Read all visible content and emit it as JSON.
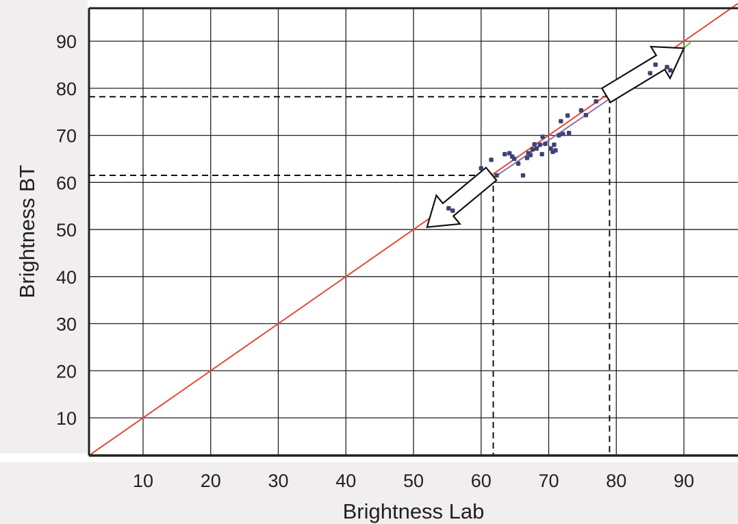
{
  "chart_data": {
    "type": "scatter",
    "title": "",
    "xlabel": "Brightness Lab",
    "ylabel": "Brightness BT",
    "xlim": [
      2,
      98
    ],
    "ylim": [
      2,
      97
    ],
    "x_ticks": [
      10,
      20,
      30,
      40,
      50,
      60,
      70,
      80,
      90
    ],
    "y_ticks": [
      10,
      20,
      30,
      40,
      50,
      60,
      70,
      80,
      90
    ],
    "x_tick_labels": [
      "10",
      "20",
      "30",
      "40",
      "50",
      "60",
      "70",
      "80",
      "90"
    ],
    "y_tick_labels": [
      "10",
      "20",
      "30",
      "40",
      "50",
      "60",
      "70",
      "80",
      "90"
    ],
    "grid": true,
    "colors": {
      "identity_line": "#e2483a",
      "fit_line": "#8d6fa6",
      "fit_line_ends": "#8fbf5a",
      "points": "#3e4274",
      "grid": "#231f20",
      "label_panel": "#f0eeee"
    },
    "reference_lines": {
      "identity": {
        "from": [
          2,
          2
        ],
        "to": [
          98,
          98
        ]
      },
      "fit": {
        "from": [
          55,
          54.3
        ],
        "to": [
          90,
          88.5
        ]
      }
    },
    "dashed_guides": [
      {
        "x": 61.8,
        "y": 61.5
      },
      {
        "x": 79,
        "y": 78.2
      }
    ],
    "arrows": [
      {
        "from": [
          61.5,
          61.8
        ],
        "to": [
          52,
          50.5
        ],
        "direction": "down-left"
      },
      {
        "from": [
          78.5,
          78.5
        ],
        "to": [
          90,
          88.5
        ],
        "direction": "up-right"
      }
    ],
    "series": [
      {
        "values": [
          [
            55.2,
            54.5
          ],
          [
            55.8,
            54.0
          ],
          [
            60.0,
            63.0
          ],
          [
            61.5,
            64.8
          ],
          [
            62.3,
            61.5
          ],
          [
            63.5,
            66.0
          ],
          [
            64.2,
            66.2
          ],
          [
            64.6,
            65.5
          ],
          [
            64.9,
            65.0
          ],
          [
            65.5,
            64.0
          ],
          [
            66.2,
            61.5
          ],
          [
            66.8,
            65.2
          ],
          [
            67.0,
            66.2
          ],
          [
            67.3,
            65.8
          ],
          [
            67.6,
            67.0
          ],
          [
            67.9,
            68.1
          ],
          [
            68.2,
            67.2
          ],
          [
            68.7,
            68.0
          ],
          [
            69.0,
            66.0
          ],
          [
            69.1,
            69.7
          ],
          [
            69.5,
            68.2
          ],
          [
            70.3,
            67.2
          ],
          [
            70.6,
            66.5
          ],
          [
            70.8,
            68.0
          ],
          [
            71.0,
            66.8
          ],
          [
            71.5,
            70.0
          ],
          [
            71.8,
            73.0
          ],
          [
            72.1,
            70.3
          ],
          [
            72.8,
            74.2
          ],
          [
            73.0,
            70.5
          ],
          [
            74.8,
            75.3
          ],
          [
            75.5,
            74.3
          ],
          [
            77.0,
            77.2
          ],
          [
            85.0,
            83.2
          ],
          [
            85.8,
            85.0
          ],
          [
            87.5,
            84.5
          ],
          [
            88.0,
            83.8
          ]
        ]
      }
    ]
  }
}
